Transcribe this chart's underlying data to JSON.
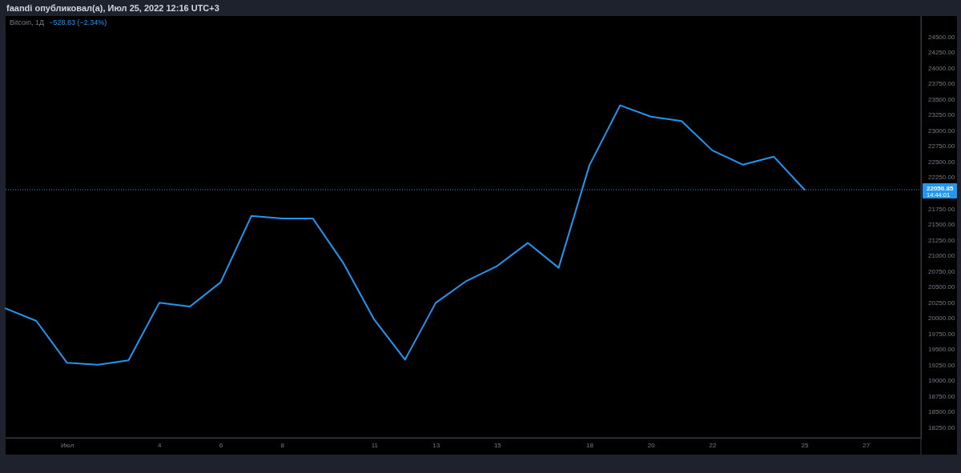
{
  "chart_data": {
    "type": "line",
    "title": "faandi опубликовал(а), Июл 25, 2022 12:16 UTC+3",
    "subtitle": "Bitcoin, 1Д",
    "annotations": [
      "−528.83 (−2.34%)",
      "14:44:01"
    ],
    "x": [
      "2022-06-29",
      "2022-06-30",
      "2022-07-01",
      "2022-07-02",
      "2022-07-03",
      "2022-07-04",
      "2022-07-05",
      "2022-07-06",
      "2022-07-07",
      "2022-07-08",
      "2022-07-09",
      "2022-07-10",
      "2022-07-11",
      "2022-07-12",
      "2022-07-13",
      "2022-07-14",
      "2022-07-15",
      "2022-07-16",
      "2022-07-17",
      "2022-07-18",
      "2022-07-19",
      "2022-07-20",
      "2022-07-21",
      "2022-07-22",
      "2022-07-23",
      "2022-07-24",
      "2022-07-25"
    ],
    "series": [
      {
        "color": "#2196f3",
        "values": [
          20150,
          19950,
          19280,
          19250,
          19320,
          20240,
          20180,
          20570,
          21630,
          21590,
          21590,
          20870,
          19970,
          19330,
          20240,
          20590,
          20830,
          21200,
          20800,
          22440,
          23400,
          23220,
          23150,
          22680,
          22450,
          22580,
          22050
        ]
      }
    ],
    "xlim": [
      "2022-06-29",
      "2022-07-28T19:00"
    ],
    "xticks": [
      {
        "value": "2022-07-01",
        "label": "Июл"
      },
      {
        "value": "2022-07-04",
        "label": "4"
      },
      {
        "value": "2022-07-06",
        "label": "6"
      },
      {
        "value": "2022-07-08",
        "label": "8"
      },
      {
        "value": "2022-07-11",
        "label": "11"
      },
      {
        "value": "2022-07-13",
        "label": "13"
      },
      {
        "value": "2022-07-15",
        "label": "15"
      },
      {
        "value": "2022-07-18",
        "label": "18"
      },
      {
        "value": "2022-07-20",
        "label": "20"
      },
      {
        "value": "2022-07-22",
        "label": "22"
      },
      {
        "value": "2022-07-25",
        "label": "25"
      },
      {
        "value": "2022-07-27",
        "label": "27"
      }
    ],
    "ylim": [
      18080,
      24830
    ],
    "yticks": [
      {
        "value": 24500,
        "label": "24500.00"
      },
      {
        "value": 24250,
        "label": "24250.00"
      },
      {
        "value": 24000,
        "label": "24000.00"
      },
      {
        "value": 23750,
        "label": "23750.00"
      },
      {
        "value": 23500,
        "label": "23500.00"
      },
      {
        "value": 23250,
        "label": "23250.00"
      },
      {
        "value": 23000,
        "label": "23000.00"
      },
      {
        "value": 22750,
        "label": "22750.00"
      },
      {
        "value": 22500,
        "label": "22500.00"
      },
      {
        "value": 22250,
        "label": "22250.00"
      },
      {
        "value": 21750,
        "label": "21750.00"
      },
      {
        "value": 21500,
        "label": "21500.00"
      },
      {
        "value": 21250,
        "label": "21250.00"
      },
      {
        "value": 21000,
        "label": "21000.00"
      },
      {
        "value": 20750,
        "label": "20750.00"
      },
      {
        "value": 20500,
        "label": "20500.00"
      },
      {
        "value": 20250,
        "label": "20250.00"
      },
      {
        "value": 20000,
        "label": "20000.00"
      },
      {
        "value": 19750,
        "label": "19750.00"
      },
      {
        "value": 19500,
        "label": "19500.00"
      },
      {
        "value": 19250,
        "label": "19250.00"
      },
      {
        "value": 19000,
        "label": "19000.00"
      },
      {
        "value": 18750,
        "label": "18750.00"
      },
      {
        "value": 18500,
        "label": "18500.00"
      },
      {
        "value": 18250,
        "label": "18250.00"
      }
    ],
    "ref_lines": [
      {
        "axis": "y",
        "value": 22050.85,
        "label": "22050.85",
        "color": "#2196f3",
        "line_style": "dotted"
      }
    ],
    "marker": "none",
    "line_style": "solid"
  }
}
